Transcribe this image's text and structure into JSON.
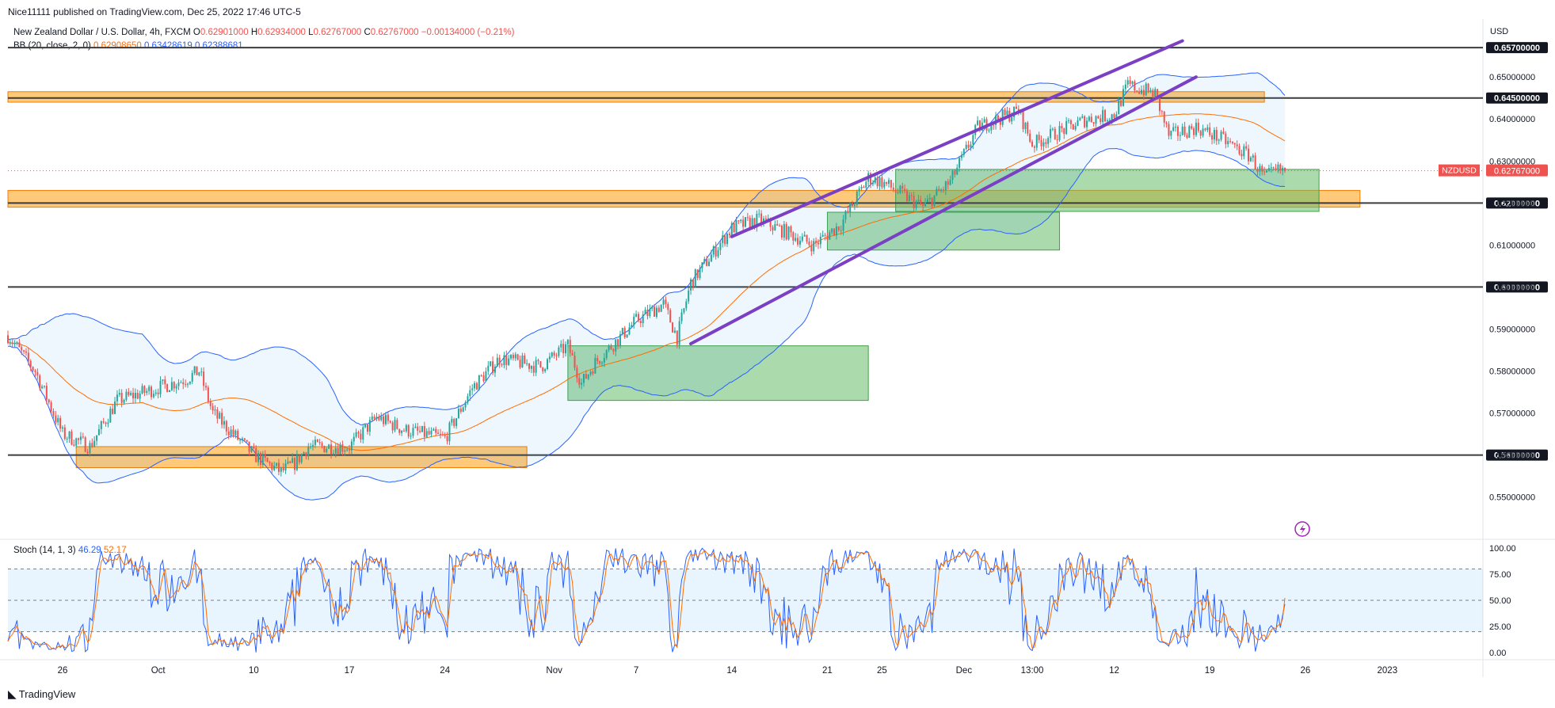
{
  "header": {
    "published": "Nice11111 published on TradingView.com, Dec 25, 2022 17:46 UTC-5",
    "symbol_desc": "New Zealand Dollar / U.S. Dollar, 4h, FXCM",
    "o_label": "O",
    "o_value": "0.62901000",
    "h_label": "H",
    "h_value": "0.62934000",
    "l_label": "L",
    "l_value": "0.62767000",
    "c_label": "C",
    "c_value": "0.62767000",
    "change": "−0.00134000 (−0.21%)",
    "bb_label": "BB (20, close, 2, 0)",
    "bb_basis": "0.62908650",
    "bb_upper": "0.63428619",
    "bb_lower": "0.62388681",
    "stoch_label": "Stoch (14, 1, 3)",
    "stoch_k": "46.29",
    "stoch_d": "52.17"
  },
  "price_axis": {
    "currency": "USD"
  },
  "footer": {
    "brand": "TradingView"
  },
  "colors": {
    "up": "#26a69a",
    "down": "#ef5350",
    "bb_basis": "#ff6d00",
    "bb_band": "#2962ff",
    "zone_orange": "#ffb74d",
    "zone_green": "#66bb6a",
    "channel": "#7b3fc4",
    "level_line": "#3c3c3c",
    "stoch_k": "#2962ff",
    "stoch_d": "#ff6d00"
  },
  "chart_data": {
    "type": "candlestick",
    "symbol": "NZDUSD",
    "timeframe": "4h",
    "last_price": 0.62767,
    "last_price_label": "0.62767000",
    "price_range": [
      0.5405,
      0.6638
    ],
    "price_ticks": [
      0.55,
      0.56,
      0.57,
      0.58,
      0.59,
      0.6,
      0.61,
      0.62,
      0.63,
      0.64,
      0.65
    ],
    "price_tick_labels": [
      "0.55000000",
      "0.56000000",
      "0.57000000",
      "0.58000000",
      "0.59000000",
      "0.60000000",
      "0.61000000",
      "0.62000000",
      "0.63000000",
      "0.64000000",
      "0.65000000"
    ],
    "horizontal_levels": [
      {
        "price": 0.657,
        "label": "0.65700000"
      },
      {
        "price": 0.645,
        "label": "0.64500000"
      },
      {
        "price": 0.62,
        "label": "0.62000000"
      },
      {
        "price": 0.6,
        "label": "0.60000000"
      },
      {
        "price": 0.56,
        "label": "0.56000000"
      }
    ],
    "x_labels": [
      "26",
      "Oct",
      "10",
      "17",
      "24",
      "Nov",
      "7",
      "14",
      "21",
      "25",
      "Dec",
      "13:00",
      "12",
      "19",
      "26",
      "2023"
    ],
    "x_label_dates": [
      "2022-09-26",
      "2022-10-03",
      "2022-10-10",
      "2022-10-17",
      "2022-10-24",
      "2022-11-01",
      "2022-11-07",
      "2022-11-14",
      "2022-11-21",
      "2022-11-25",
      "2022-12-01",
      "2022-12-06",
      "2022-12-12",
      "2022-12-19",
      "2022-12-26",
      "2023-01-01"
    ],
    "x_range": [
      "2022-09-22",
      "2023-01-08"
    ],
    "price_path": [
      [
        "2022-09-22",
        0.5885
      ],
      [
        "2022-09-24",
        0.58
      ],
      [
        "2022-09-26",
        0.565
      ],
      [
        "2022-09-28",
        0.562
      ],
      [
        "2022-09-30",
        0.573
      ],
      [
        "2022-10-03",
        0.576
      ],
      [
        "2022-10-05",
        0.578
      ],
      [
        "2022-10-06",
        0.58
      ],
      [
        "2022-10-07",
        0.57
      ],
      [
        "2022-10-10",
        0.56
      ],
      [
        "2022-10-12",
        0.556
      ],
      [
        "2022-10-13",
        0.558
      ],
      [
        "2022-10-14",
        0.562
      ],
      [
        "2022-10-17",
        0.562
      ],
      [
        "2022-10-19",
        0.569
      ],
      [
        "2022-10-21",
        0.566
      ],
      [
        "2022-10-24",
        0.564
      ],
      [
        "2022-10-26",
        0.576
      ],
      [
        "2022-10-28",
        0.583
      ],
      [
        "2022-10-31",
        0.581
      ],
      [
        "2022-11-02",
        0.586
      ],
      [
        "2022-11-03",
        0.577
      ],
      [
        "2022-11-04",
        0.582
      ],
      [
        "2022-11-07",
        0.592
      ],
      [
        "2022-11-09",
        0.596
      ],
      [
        "2022-11-10",
        0.588
      ],
      [
        "2022-11-11",
        0.601
      ],
      [
        "2022-11-14",
        0.614
      ],
      [
        "2022-11-16",
        0.616
      ],
      [
        "2022-11-18",
        0.613
      ],
      [
        "2022-11-20",
        0.61
      ],
      [
        "2022-11-22",
        0.615
      ],
      [
        "2022-11-24",
        0.626
      ],
      [
        "2022-11-25",
        0.625
      ],
      [
        "2022-11-28",
        0.619
      ],
      [
        "2022-11-30",
        0.625
      ],
      [
        "2022-12-02",
        0.638
      ],
      [
        "2022-12-05",
        0.642
      ],
      [
        "2022-12-06",
        0.634
      ],
      [
        "2022-12-08",
        0.637
      ],
      [
        "2022-12-10",
        0.64
      ],
      [
        "2022-12-12",
        0.641
      ],
      [
        "2022-12-13",
        0.648
      ],
      [
        "2022-12-15",
        0.646
      ],
      [
        "2022-12-16",
        0.636
      ],
      [
        "2022-12-18",
        0.638
      ],
      [
        "2022-12-20",
        0.635
      ],
      [
        "2022-12-22",
        0.631
      ],
      [
        "2022-12-23",
        0.626
      ],
      [
        "2022-12-24",
        0.6277
      ]
    ],
    "zones": [
      {
        "color": "orange",
        "from": "2022-09-22",
        "to": "2022-12-23",
        "low": 0.644,
        "high": 0.6465
      },
      {
        "color": "orange",
        "from": "2022-09-22",
        "to": "2022-12-30",
        "low": 0.619,
        "high": 0.623
      },
      {
        "color": "orange",
        "from": "2022-09-27",
        "to": "2022-10-30",
        "low": 0.557,
        "high": 0.562
      },
      {
        "color": "green",
        "from": "2022-11-02",
        "to": "2022-11-24",
        "low": 0.573,
        "high": 0.586
      },
      {
        "color": "green",
        "from": "2022-11-21",
        "to": "2022-12-08",
        "low": 0.6088,
        "high": 0.6178
      },
      {
        "color": "green",
        "from": "2022-11-26",
        "to": "2022-12-27",
        "low": 0.618,
        "high": 0.628
      }
    ],
    "channel": {
      "upper": [
        [
          "2022-11-14",
          0.612
        ],
        [
          "2022-12-17",
          0.6586
        ]
      ],
      "lower": [
        [
          "2022-11-11",
          0.5865
        ],
        [
          "2022-12-18",
          0.65
        ]
      ]
    },
    "stoch_ticks": [
      0,
      25,
      50,
      75,
      100
    ],
    "stoch_tick_labels": [
      "0.00",
      "25.00",
      "50.00",
      "75.00",
      "100.00"
    ],
    "stoch_band": [
      20,
      80
    ],
    "stoch_k_last": 46.29,
    "stoch_d_last": 52.17
  }
}
